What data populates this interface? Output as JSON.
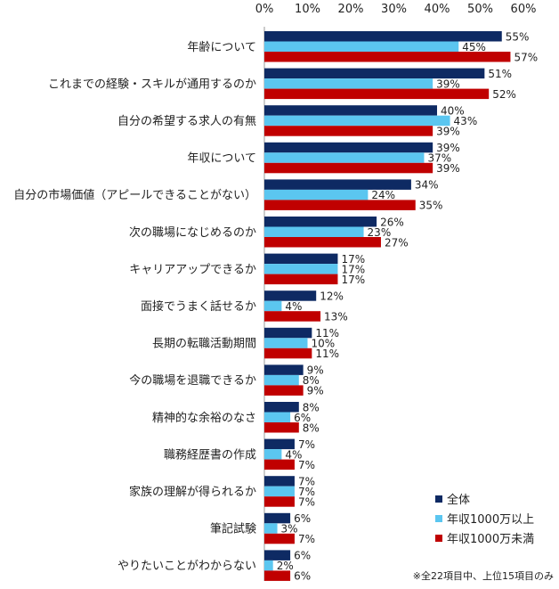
{
  "chart_data": {
    "type": "bar",
    "orientation": "horizontal",
    "categories": [
      "年齢について",
      "これまでの経験・スキルが通用するのか",
      "自分の希望する求人の有無",
      "年収について",
      "自分の市場価値（アピールできることがない）",
      "次の職場になじめるのか",
      "キャリアアップできるか",
      "面接でうまく話せるか",
      "長期の転職活動期間",
      "今の職場を退職できるか",
      "精神的な余裕のなさ",
      "職務経歴書の作成",
      "家族の理解が得られるか",
      "筆記試験",
      "やりたいことがわからない"
    ],
    "series": [
      {
        "name": "全体",
        "color": "#0e2a63",
        "values": [
          55,
          51,
          40,
          39,
          34,
          26,
          17,
          12,
          11,
          9,
          8,
          7,
          7,
          6,
          6
        ],
        "labels": [
          "55%",
          "51%",
          "40%",
          "39%",
          "34%",
          "26%",
          "17%",
          "12%",
          "11%",
          "9%",
          "8%",
          "7%",
          "7%",
          "6%",
          "6%"
        ]
      },
      {
        "name": "年収1000万以上",
        "color": "#5bc6f0",
        "values": [
          45,
          39,
          43,
          37,
          24,
          23,
          17,
          4,
          10,
          8,
          6,
          4,
          7,
          3,
          2
        ],
        "labels": [
          "45%",
          "39%",
          "43%",
          "37%",
          "24%",
          "23%",
          "17%",
          "4%",
          "10%",
          "8%",
          "6%",
          "4%",
          "7%",
          "3%",
          "2%"
        ]
      },
      {
        "name": "年収1000万未満",
        "color": "#c00000",
        "values": [
          57,
          52,
          39,
          39,
          35,
          27,
          17,
          13,
          11,
          9,
          8,
          7,
          7,
          7,
          6
        ],
        "labels": [
          "57%",
          "52%",
          "39%",
          "39%",
          "35%",
          "27%",
          "17%",
          "13%",
          "11%",
          "9%",
          "8%",
          "7%",
          "7%",
          "7%",
          "6%"
        ]
      }
    ],
    "xlim": [
      0,
      60
    ],
    "ticks": [
      "0%",
      "10%",
      "20%",
      "30%",
      "40%",
      "50%",
      "60%"
    ],
    "tick_values": [
      0,
      10,
      20,
      30,
      40,
      50,
      60
    ],
    "grid": false,
    "legend_position": "bottom-right",
    "footnote": "※全22項目中、上位15項目のみ"
  }
}
